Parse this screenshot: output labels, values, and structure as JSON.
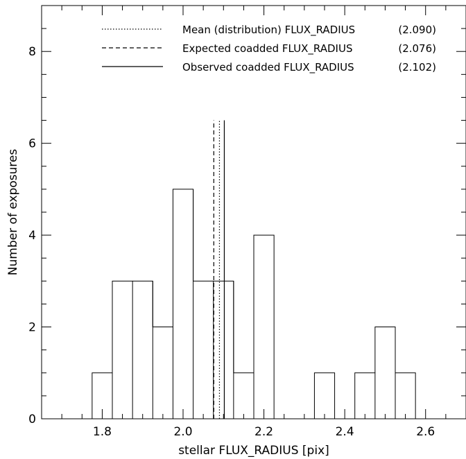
{
  "chart_data": {
    "type": "bar",
    "subtype": "step-histogram",
    "xlabel": "stellar FLUX_RADIUS [pix]",
    "ylabel": "Number of exposures",
    "xlim": [
      1.65,
      2.7
    ],
    "ylim": [
      0,
      9
    ],
    "x_ticks": [
      1.8,
      2.0,
      2.2,
      2.4,
      2.6
    ],
    "x_tick_labels": [
      "1.8",
      "2.0",
      "2.2",
      "2.4",
      "2.6"
    ],
    "x_minor_step": 0.05,
    "y_ticks": [
      0,
      2,
      4,
      6,
      8
    ],
    "y_tick_labels": [
      "0",
      "2",
      "4",
      "6",
      "8"
    ],
    "y_minor_step": 0.5,
    "bin_width": 0.05,
    "bins": [
      {
        "x0": 1.775,
        "count": 1
      },
      {
        "x0": 1.825,
        "count": 3
      },
      {
        "x0": 1.875,
        "count": 3
      },
      {
        "x0": 1.925,
        "count": 2
      },
      {
        "x0": 1.975,
        "count": 5
      },
      {
        "x0": 2.025,
        "count": 3
      },
      {
        "x0": 2.075,
        "count": 3
      },
      {
        "x0": 2.125,
        "count": 1
      },
      {
        "x0": 2.175,
        "count": 4
      },
      {
        "x0": 2.225,
        "count": 0
      },
      {
        "x0": 2.275,
        "count": 0
      },
      {
        "x0": 2.325,
        "count": 1
      },
      {
        "x0": 2.375,
        "count": 0
      },
      {
        "x0": 2.425,
        "count": 1
      },
      {
        "x0": 2.475,
        "count": 2
      },
      {
        "x0": 2.525,
        "count": 1
      }
    ],
    "vertical_lines": [
      {
        "label": "Mean (distribution) FLUX_RADIUS",
        "value_text": "(2.090)",
        "x": 2.09,
        "style": "dotted",
        "y_top": 6.5
      },
      {
        "label": "Expected coadded FLUX_RADIUS",
        "value_text": "(2.076)",
        "x": 2.076,
        "style": "dashed",
        "y_top": 6.5
      },
      {
        "label": "Observed coadded FLUX_RADIUS",
        "value_text": "(2.102)",
        "x": 2.102,
        "style": "solid",
        "y_top": 6.5
      }
    ],
    "legend_position": "top-center",
    "grid": false
  }
}
